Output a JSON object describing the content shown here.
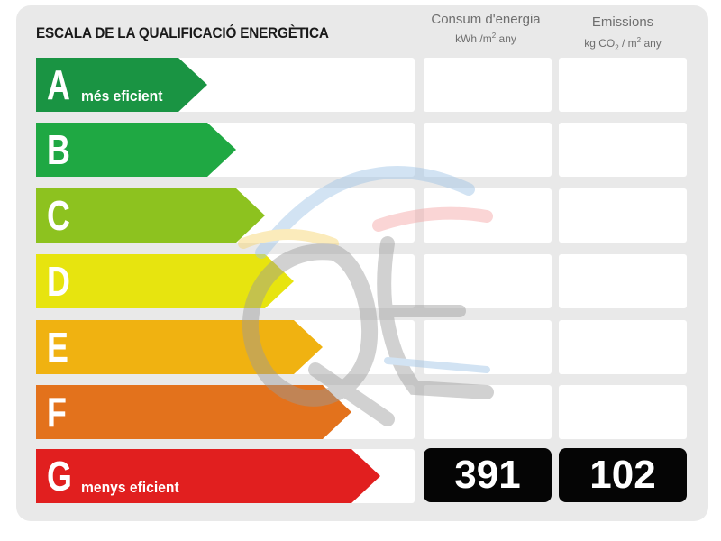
{
  "title": "ESCALA DE LA QUALIFICACIÓ ENERGÈTICA",
  "columns": {
    "consum": {
      "label": "Consum d'energia",
      "unit_pre": "kWh /m",
      "unit_exp": "2",
      "unit_post": " any"
    },
    "emissions": {
      "label": "Emissions",
      "unit_pre": "kg CO",
      "unit_sub": "2",
      "unit_mid": "  / m",
      "unit_exp": "2",
      "unit_post": "  any"
    }
  },
  "ratings": [
    {
      "letter": "A",
      "desc": "més eficient",
      "color": "#1a9443"
    },
    {
      "letter": "B",
      "desc": "",
      "color": "#1fa843"
    },
    {
      "letter": "C",
      "desc": "",
      "color": "#8dc21f"
    },
    {
      "letter": "D",
      "desc": "",
      "color": "#e7e40f"
    },
    {
      "letter": "E",
      "desc": "",
      "color": "#f0b211"
    },
    {
      "letter": "F",
      "desc": "",
      "color": "#e3721c"
    },
    {
      "letter": "G",
      "desc": "menys eficient",
      "color": "#e11f1f"
    }
  ],
  "result": {
    "rating": "G",
    "consum_value": "391",
    "emissions_value": "102"
  },
  "watermark": {
    "text": "QE",
    "colors": [
      "#9cc3e6",
      "#f4a3a3",
      "#f7d46b"
    ]
  }
}
